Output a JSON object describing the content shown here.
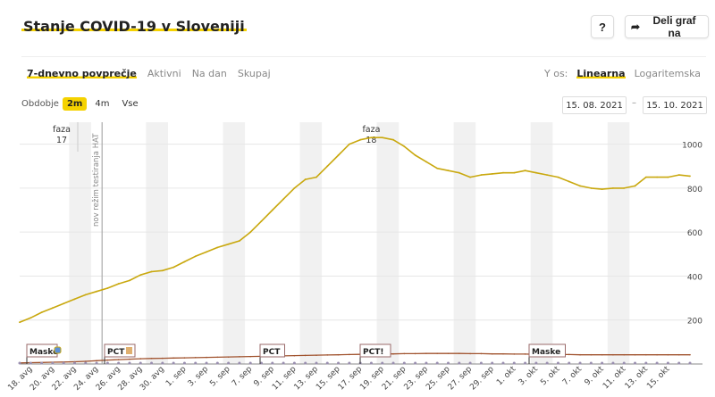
{
  "header": {
    "title": "Stanje COVID-19 v Sloveniji",
    "help_label": "?",
    "share_label": "Deli graf na"
  },
  "tabs": [
    {
      "label": "7-dnevno povprečje",
      "active": true
    },
    {
      "label": "Aktivni",
      "active": false
    },
    {
      "label": "Na dan",
      "active": false
    },
    {
      "label": "Skupaj",
      "active": false
    }
  ],
  "yaxis": {
    "label": "Y os:",
    "options": [
      "Linearna",
      "Logaritemska"
    ],
    "selected": "Linearna"
  },
  "period": {
    "label": "Obdobje",
    "options": [
      "2m",
      "4m",
      "Vse"
    ],
    "selected": "2m"
  },
  "date_range": {
    "from": "15. 08. 2021",
    "to": "15. 10. 2021"
  },
  "colors": {
    "accent": "#f5d200",
    "primary_series": "#c9a80e",
    "secondary_series": "#a0522d"
  },
  "chart_data": {
    "type": "line",
    "x_tick_labels": [
      "18. avg",
      "20. avg",
      "22. avg",
      "24. avg",
      "26. avg",
      "28. avg",
      "30. avg",
      "1. sep",
      "3. sep",
      "5. sep",
      "7. sep",
      "9. sep",
      "11. sep",
      "13. sep",
      "15. sep",
      "17. sep",
      "19. sep",
      "21. sep",
      "23. sep",
      "25. sep",
      "27. sep",
      "29. sep",
      "1. okt",
      "3. okt",
      "5. okt",
      "7. okt",
      "9. okt",
      "11. okt",
      "13. okt",
      "15. okt"
    ],
    "y_ticks": [
      200,
      400,
      600,
      800,
      1000
    ],
    "ylim": [
      0,
      1100
    ],
    "series": [
      {
        "values": [
          190,
          210,
          235,
          255,
          275,
          295,
          315,
          330,
          345,
          365,
          380,
          405,
          420,
          425,
          440,
          465,
          490,
          510,
          530,
          545,
          560,
          600,
          650,
          700,
          750,
          800,
          840,
          850,
          900,
          950,
          1000,
          1020,
          1030,
          1030,
          1020,
          990,
          950,
          920,
          890,
          880,
          870,
          850,
          860,
          865,
          870,
          870,
          880,
          870,
          860,
          850,
          830,
          810,
          800,
          795,
          800,
          800,
          810,
          850,
          850,
          850,
          860,
          855
        ]
      },
      {
        "values": [
          5,
          6,
          7,
          8,
          9,
          10,
          12,
          15,
          18,
          20,
          22,
          24,
          25,
          26,
          27,
          28,
          29,
          30,
          31,
          32,
          33,
          34,
          35,
          36,
          37,
          38,
          39,
          40,
          41,
          42,
          43,
          44,
          45,
          46,
          46,
          47,
          47,
          48,
          48,
          48,
          48,
          47,
          47,
          46,
          46,
          45,
          45,
          44,
          44,
          43,
          43,
          42,
          42,
          42,
          42,
          42,
          42,
          42,
          42,
          42,
          42,
          42
        ]
      }
    ],
    "phases": [
      {
        "label": "faza",
        "number": "17",
        "day": 0
      },
      {
        "label": "faza",
        "number": "18",
        "day": 32
      }
    ],
    "event_line": {
      "label": "nov režim testiranja HAT",
      "day": 7.5
    },
    "annotations": [
      {
        "label": "Maske",
        "icon": "mask-icon",
        "day": 0
      },
      {
        "label": "PCT",
        "icon": "hospital-icon",
        "day": 7
      },
      {
        "label": "PCT",
        "icon": "",
        "day": 20
      },
      {
        "label": "PCT!",
        "icon": "",
        "day": 30
      },
      {
        "label": "Maske",
        "icon": "",
        "day": 44
      }
    ],
    "weekend_start_days": [
      5,
      12,
      19,
      26,
      33,
      40,
      47,
      54
    ]
  }
}
